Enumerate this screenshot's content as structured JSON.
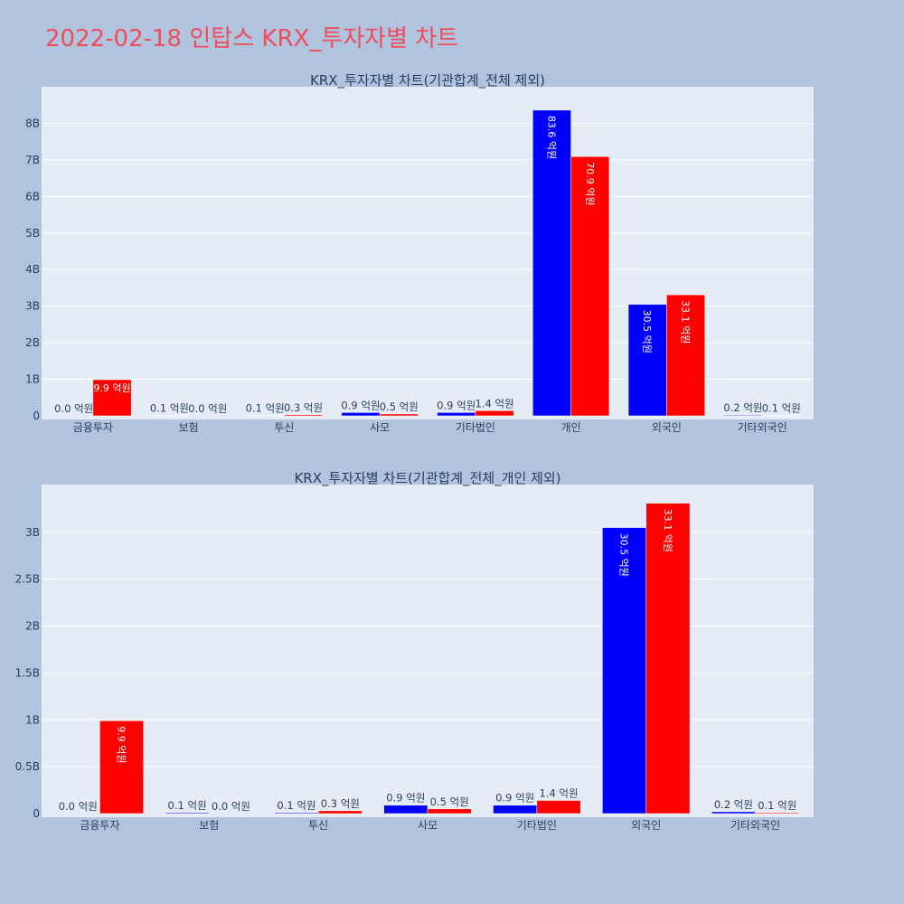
{
  "page": {
    "title": "2022-02-18 인탑스 KRX_투자자별 차트"
  },
  "colors": {
    "series1": "#0000ff",
    "series2": "#ff0000",
    "plot_bg": "#e5ecf6",
    "page_bg": "#b0c4de"
  },
  "chart_data": [
    {
      "type": "bar",
      "title": "KRX_투자자별 차트(기관합계_전체 제외)",
      "categories": [
        "금융투자",
        "보험",
        "투신",
        "사모",
        "기타법인",
        "개인",
        "외국인",
        "기타외국인"
      ],
      "ylim": [
        0,
        8900000000
      ],
      "yticks": [
        0,
        1000000000,
        2000000000,
        3000000000,
        4000000000,
        5000000000,
        6000000000,
        7000000000,
        8000000000
      ],
      "ytick_labels": [
        "0",
        "1B",
        "2B",
        "3B",
        "4B",
        "5B",
        "6B",
        "7B",
        "8B"
      ],
      "grid": true,
      "series": [
        {
          "values": [
            0,
            10000000,
            10000000,
            90000000,
            90000000,
            8360000000,
            3050000000,
            20000000
          ],
          "labels": [
            "0.0 억원",
            "0.1 억원",
            "0.1 억원",
            "0.9 억원",
            "0.9 억원",
            "83.6 억원",
            "30.5 억원",
            "0.2 억원"
          ]
        },
        {
          "values": [
            990000000,
            0,
            30000000,
            50000000,
            140000000,
            7090000000,
            3310000000,
            10000000
          ],
          "labels": [
            "9.9 억원",
            "0.0 억원",
            "0.3 억원",
            "0.5 억원",
            "1.4 억원",
            "70.9 억원",
            "33.1 억원",
            "0.1 억원"
          ]
        }
      ]
    },
    {
      "type": "bar",
      "title": "KRX_투자자별 차트(기관합계_전체_개인 제외)",
      "categories": [
        "금융투자",
        "보험",
        "투신",
        "사모",
        "기타법인",
        "외국인",
        "기타외국인"
      ],
      "ylim": [
        0,
        3470000000
      ],
      "yticks": [
        0,
        500000000,
        1000000000,
        1500000000,
        2000000000,
        2500000000,
        3000000000
      ],
      "ytick_labels": [
        "0",
        "0.5B",
        "1B",
        "1.5B",
        "2B",
        "2.5B",
        "3B"
      ],
      "grid": true,
      "series": [
        {
          "values": [
            0,
            10000000,
            10000000,
            90000000,
            90000000,
            3050000000,
            20000000
          ],
          "labels": [
            "0.0 억원",
            "0.1 억원",
            "0.1 억원",
            "0.9 억원",
            "0.9 억원",
            "30.5 억원",
            "0.2 억원"
          ]
        },
        {
          "values": [
            990000000,
            0,
            30000000,
            50000000,
            140000000,
            3310000000,
            10000000
          ],
          "labels": [
            "9.9 억원",
            "0.0 억원",
            "0.3 억원",
            "0.5 억원",
            "1.4 억원",
            "33.1 억원",
            "0.1 억원"
          ]
        }
      ]
    }
  ]
}
